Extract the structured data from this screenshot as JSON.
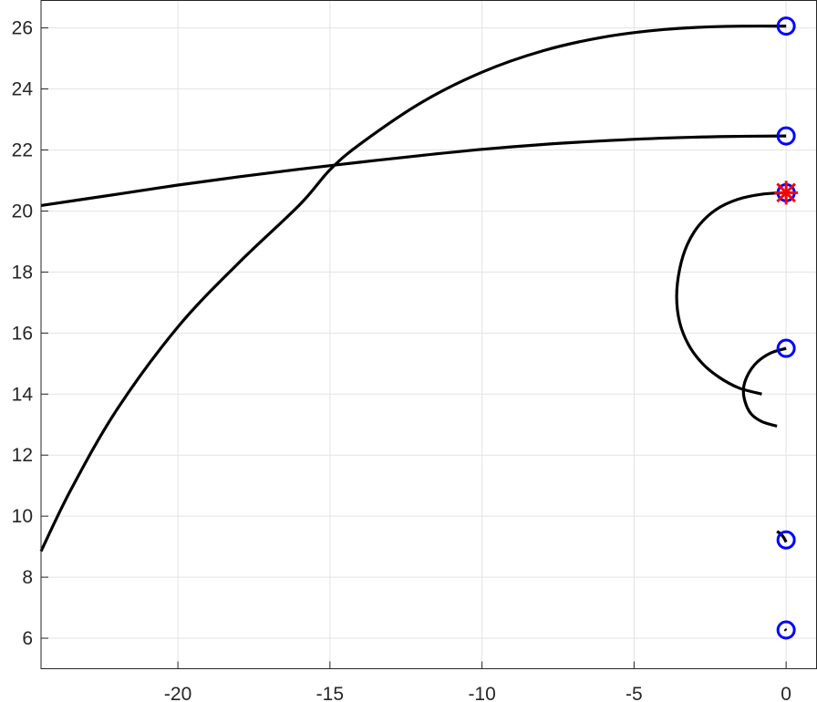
{
  "chart_data": {
    "type": "line",
    "title": "",
    "xlabel": "",
    "ylabel": "",
    "xlim": [
      -24.5,
      1.0
    ],
    "ylim": [
      5.0,
      26.9
    ],
    "grid": true,
    "x_ticks": [
      -20,
      -15,
      -10,
      -5,
      0
    ],
    "y_ticks": [
      6,
      8,
      10,
      12,
      14,
      16,
      18,
      20,
      22,
      24,
      26
    ],
    "x_tick_labels": [
      "-20",
      "-15",
      "-10",
      "-5",
      "0"
    ],
    "y_tick_labels": [
      "6",
      "8",
      "10",
      "12",
      "14",
      "16",
      "18",
      "20",
      "22",
      "24",
      "26"
    ],
    "line_color": "#000000",
    "circle_marker_color": "#0000ff",
    "star_marker_color": "#ff0000",
    "series": [
      {
        "color": "#000000",
        "points": [
          [
            -24.5,
            8.85
          ],
          [
            -23.5,
            10.9
          ],
          [
            -22,
            13.5
          ],
          [
            -20,
            16.2
          ],
          [
            -18,
            18.3
          ],
          [
            -16,
            20.2
          ],
          [
            -15,
            21.35
          ],
          [
            -14,
            22.2
          ],
          [
            -12,
            23.55
          ],
          [
            -10,
            24.55
          ],
          [
            -8,
            25.25
          ],
          [
            -6,
            25.7
          ],
          [
            -4,
            25.95
          ],
          [
            -2,
            26.05
          ],
          [
            0,
            26.06
          ]
        ]
      },
      {
        "color": "#000000",
        "points": [
          [
            -24.5,
            20.18
          ],
          [
            -22,
            20.55
          ],
          [
            -20,
            20.85
          ],
          [
            -18,
            21.12
          ],
          [
            -16,
            21.37
          ],
          [
            -14,
            21.6
          ],
          [
            -12,
            21.82
          ],
          [
            -10,
            22.02
          ],
          [
            -8,
            22.18
          ],
          [
            -6,
            22.3
          ],
          [
            -4,
            22.39
          ],
          [
            -2,
            22.44
          ],
          [
            0,
            22.46
          ]
        ]
      },
      {
        "color": "#000000",
        "points": [
          [
            0.0,
            20.6
          ],
          [
            -0.8,
            20.55
          ],
          [
            -1.6,
            20.38
          ],
          [
            -2.3,
            20.05
          ],
          [
            -2.85,
            19.55
          ],
          [
            -3.25,
            18.9
          ],
          [
            -3.5,
            18.1
          ],
          [
            -3.6,
            17.2
          ],
          [
            -3.5,
            16.35
          ],
          [
            -3.2,
            15.6
          ],
          [
            -2.75,
            15.0
          ],
          [
            -2.2,
            14.55
          ],
          [
            -1.55,
            14.2
          ],
          [
            -0.8,
            14.0
          ]
        ]
      },
      {
        "color": "#000000",
        "points": [
          [
            0.0,
            15.5
          ],
          [
            -0.5,
            15.35
          ],
          [
            -0.95,
            15.05
          ],
          [
            -1.25,
            14.65
          ],
          [
            -1.4,
            14.2
          ],
          [
            -1.35,
            13.75
          ],
          [
            -1.15,
            13.35
          ],
          [
            -0.8,
            13.1
          ],
          [
            -0.3,
            12.95
          ]
        ]
      },
      {
        "color": "#000000",
        "points": [
          [
            0.0,
            9.15
          ],
          [
            -0.08,
            9.3
          ],
          [
            -0.18,
            9.42
          ],
          [
            -0.3,
            9.5
          ]
        ]
      },
      {
        "color": "#000000",
        "points": [
          [
            0.0,
            6.25
          ],
          [
            -0.04,
            6.3
          ]
        ]
      }
    ],
    "circle_markers": [
      [
        0,
        26.06
      ],
      [
        0,
        22.46
      ],
      [
        0,
        20.6
      ],
      [
        0,
        15.5
      ],
      [
        0,
        9.22
      ],
      [
        0,
        6.27
      ]
    ],
    "star_markers": [
      [
        0,
        20.6
      ]
    ]
  }
}
